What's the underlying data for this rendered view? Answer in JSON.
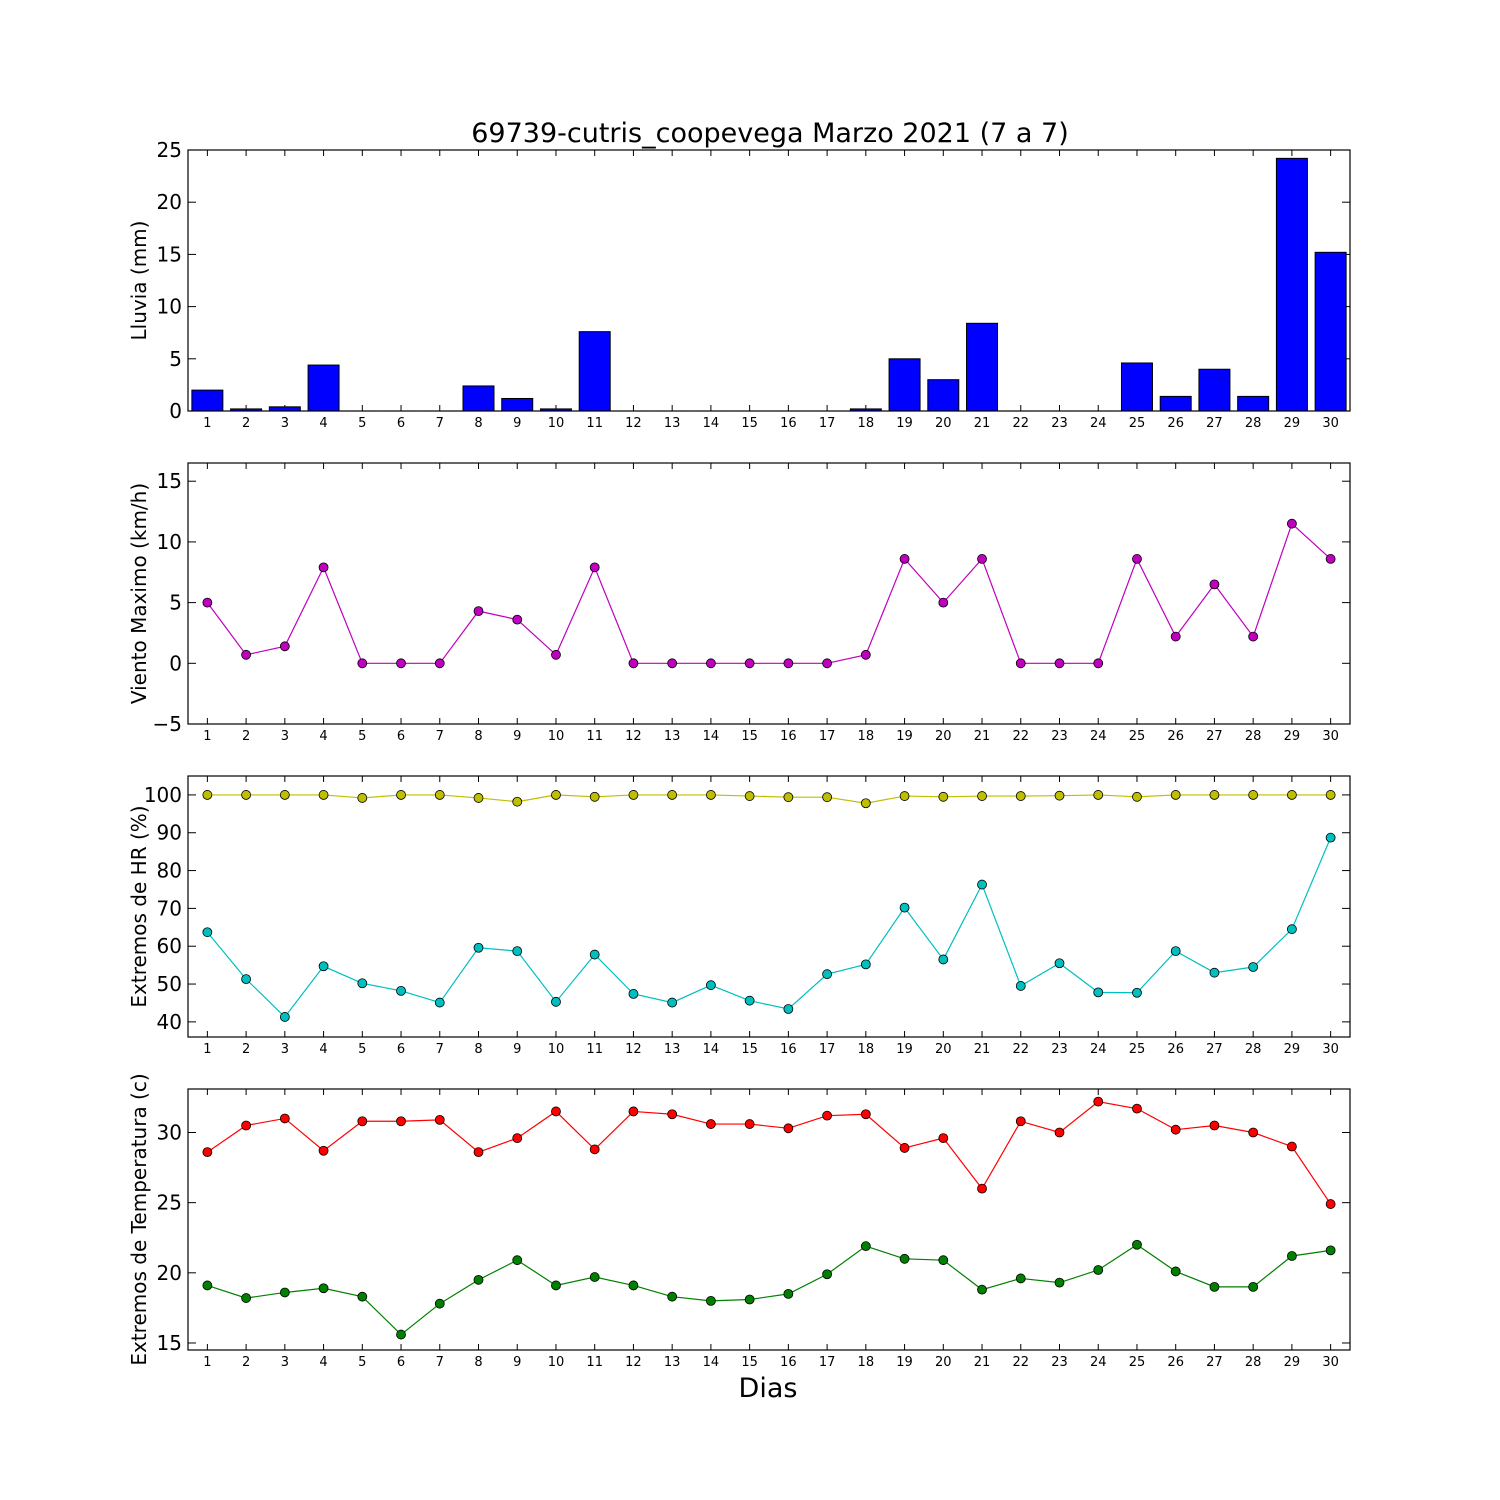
{
  "chart_data": {
    "title": "69739-cutris_coopevega Marzo 2021  (7 a 7)",
    "xlabel": "Dias",
    "categories": [
      "1",
      "2",
      "3",
      "4",
      "5",
      "6",
      "7",
      "8",
      "9",
      "10",
      "11",
      "12",
      "13",
      "14",
      "15",
      "16",
      "17",
      "18",
      "19",
      "20",
      "21",
      "22",
      "23",
      "24",
      "25",
      "26",
      "27",
      "28",
      "29",
      "30"
    ],
    "panels": [
      {
        "id": "lluvia",
        "type": "bar",
        "ylabel": "Lluvia (mm)",
        "ylim": [
          0,
          25
        ],
        "yticks": [
          0,
          5,
          10,
          15,
          20,
          25
        ],
        "series": [
          {
            "color": "#0000ff",
            "values": [
              2.0,
              0.2,
              0.4,
              4.4,
              0,
              0,
              0,
              2.4,
              1.2,
              0.2,
              7.6,
              0,
              0,
              0,
              0,
              0,
              0,
              0.2,
              5.0,
              3.0,
              8.4,
              0,
              0,
              0,
              4.6,
              1.4,
              4.0,
              1.4,
              24.2,
              15.2
            ]
          }
        ]
      },
      {
        "id": "viento",
        "type": "line",
        "ylabel": "Viento Maximo (km/h)",
        "ylim": [
          -5,
          16.5
        ],
        "yticks": [
          -5,
          0,
          5,
          10,
          15
        ],
        "series": [
          {
            "color": "#bf00bf",
            "values": [
              5.0,
              0.7,
              1.4,
              7.9,
              0,
              0,
              0,
              4.3,
              3.6,
              0.7,
              7.9,
              0,
              0,
              0,
              0,
              0,
              0,
              0.7,
              8.6,
              5.0,
              8.6,
              0,
              0,
              0,
              8.6,
              2.2,
              6.5,
              2.2,
              11.5,
              8.6
            ]
          }
        ]
      },
      {
        "id": "hr",
        "type": "line",
        "ylabel": "Extremos de HR (%)",
        "ylim": [
          36,
          105
        ],
        "yticks": [
          40,
          50,
          60,
          70,
          80,
          90,
          100
        ],
        "series": [
          {
            "color": "#bfbf00",
            "values": [
              100,
              100,
              100,
              100,
              99.2,
              100,
              100,
              99.2,
              98.2,
              100,
              99.5,
              100,
              100,
              100,
              99.7,
              99.4,
              99.4,
              97.8,
              99.7,
              99.5,
              99.7,
              99.7,
              99.8,
              100,
              99.5,
              100,
              100,
              100,
              100,
              100
            ]
          },
          {
            "color": "#00bfbf",
            "values": [
              63.7,
              51.3,
              41.3,
              54.7,
              50.2,
              48.2,
              45.1,
              59.6,
              58.7,
              45.3,
              57.8,
              47.4,
              45.1,
              49.7,
              45.6,
              43.4,
              52.6,
              55.2,
              70.2,
              56.5,
              76.3,
              49.5,
              55.5,
              47.8,
              47.7,
              58.7,
              53.0,
              54.5,
              64.5,
              88.7
            ]
          }
        ]
      },
      {
        "id": "temp",
        "type": "line",
        "ylabel": "Extremos de Temperatura (c)",
        "ylim": [
          14.5,
          33.1
        ],
        "yticks": [
          15,
          20,
          25,
          30
        ],
        "series": [
          {
            "color": "#ff0000",
            "values": [
              28.6,
              30.5,
              31.0,
              28.7,
              30.8,
              30.8,
              30.9,
              28.6,
              29.6,
              31.5,
              28.8,
              31.5,
              31.3,
              30.6,
              30.6,
              30.3,
              31.2,
              31.3,
              28.9,
              29.6,
              26.0,
              30.8,
              30.0,
              32.2,
              31.7,
              30.2,
              30.5,
              30.0,
              29.0,
              24.9
            ]
          },
          {
            "color": "#008000",
            "values": [
              19.1,
              18.2,
              18.6,
              18.9,
              18.3,
              15.6,
              17.8,
              19.5,
              20.9,
              19.1,
              19.7,
              19.1,
              18.3,
              18.0,
              18.1,
              18.5,
              19.9,
              21.9,
              21.0,
              20.9,
              18.8,
              19.6,
              19.3,
              20.2,
              22.0,
              20.1,
              19.0,
              19.0,
              21.2,
              21.6
            ]
          }
        ]
      }
    ]
  }
}
